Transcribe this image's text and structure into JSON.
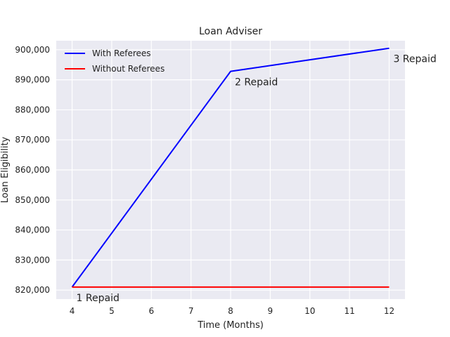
{
  "chart_data": {
    "type": "line",
    "title": "Loan Adviser",
    "xlabel": "Time (Months)",
    "ylabel": "Loan Eligibility",
    "xlim": [
      3.6,
      12.4
    ],
    "ylim": [
      817000,
      903000
    ],
    "xticks": [
      4,
      5,
      6,
      7,
      8,
      9,
      10,
      11,
      12
    ],
    "yticks": [
      820000,
      830000,
      840000,
      850000,
      860000,
      870000,
      880000,
      890000,
      900000
    ],
    "grid": true,
    "legend_position": "top-left",
    "series": [
      {
        "name": "With Referees",
        "color": "#0000ff",
        "x": [
          4,
          8,
          12
        ],
        "y": [
          821000,
          892800,
          900500
        ]
      },
      {
        "name": "Without Referees",
        "color": "#ff0000",
        "x": [
          4,
          8,
          12
        ],
        "y": [
          821000,
          821000,
          821000
        ]
      }
    ],
    "annotations": [
      {
        "text": "1 Repaid",
        "x": 4,
        "y": 821000
      },
      {
        "text": "2 Repaid",
        "x": 8,
        "y": 892800
      },
      {
        "text": "3 Repaid",
        "x": 12,
        "y": 900500
      }
    ]
  }
}
